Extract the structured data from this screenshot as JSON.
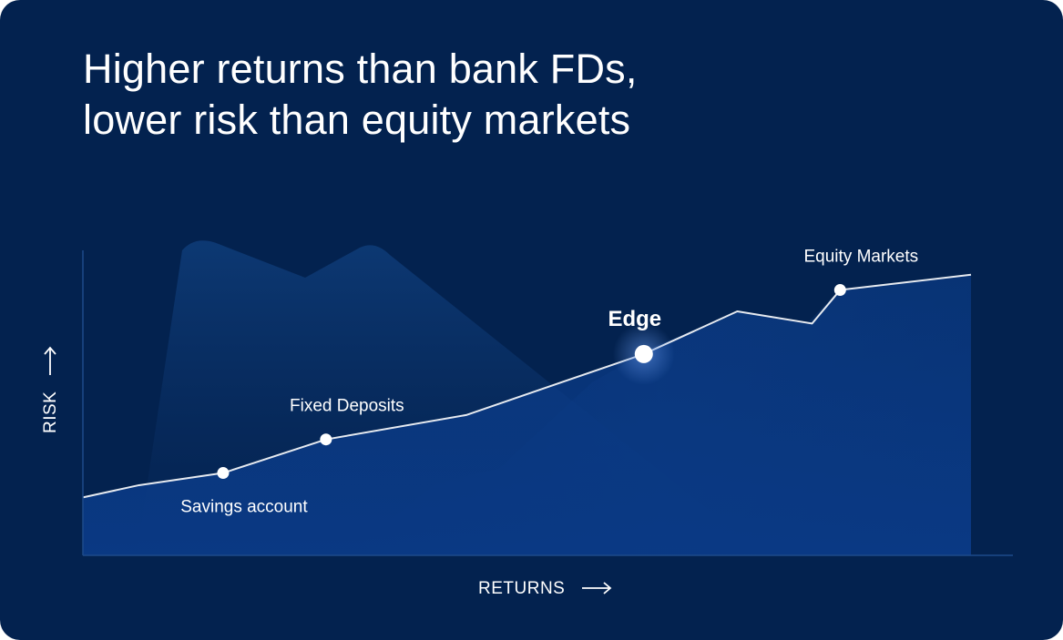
{
  "headline": {
    "line1": "Higher returns than bank FDs,",
    "line2": "lower risk than equity markets"
  },
  "chart_data": {
    "type": "line",
    "title": "Higher returns than bank FDs, lower risk than equity markets",
    "xlabel": "RETURNS",
    "ylabel": "RISK",
    "x_arrow": "right-arrow-icon",
    "y_arrow": "up-arrow-icon",
    "series": [
      {
        "points": [
          {
            "x": 0,
            "y": 19
          },
          {
            "x": 6,
            "y": 23
          },
          {
            "x": 15,
            "y": 27
          },
          {
            "x": 26,
            "y": 38
          },
          {
            "x": 41,
            "y": 46
          },
          {
            "x": 60,
            "y": 66
          },
          {
            "x": 70,
            "y": 80
          },
          {
            "x": 78,
            "y": 76
          },
          {
            "x": 81,
            "y": 87
          },
          {
            "x": 95,
            "y": 92
          }
        ]
      }
    ],
    "markers": [
      {
        "label": "Savings account",
        "x": 15,
        "y": 27,
        "emphasis": false,
        "label_pos": "below"
      },
      {
        "label": "Fixed Deposits",
        "x": 26,
        "y": 38,
        "emphasis": false,
        "label_pos": "above"
      },
      {
        "label": "Edge",
        "x": 60,
        "y": 66,
        "emphasis": true,
        "label_pos": "above"
      },
      {
        "label": "Equity Markets",
        "x": 81,
        "y": 87,
        "emphasis": false,
        "label_pos": "above"
      }
    ],
    "xlim": [
      0,
      95
    ],
    "ylim": [
      0,
      100
    ],
    "grid": false,
    "colors": {
      "background": "#03224f",
      "line": "#ffffff",
      "area_bottom": "#0a3a86",
      "marker": "#ffffff"
    }
  }
}
